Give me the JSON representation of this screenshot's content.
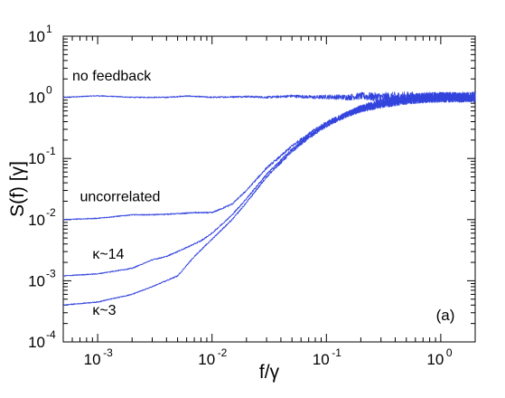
{
  "chart_data": {
    "type": "line",
    "title": "",
    "xlabel": "f/γ",
    "ylabel": "S(f) [γ]",
    "xscale": "log",
    "yscale": "log",
    "xlim": [
      0.0005,
      2
    ],
    "ylim": [
      0.0001,
      10
    ],
    "grid": false,
    "legend": "none",
    "line_color": "#3344dd",
    "x_ticks": [
      {
        "mant": "10",
        "exp": "-3",
        "value": 0.001
      },
      {
        "mant": "10",
        "exp": "-2",
        "value": 0.01
      },
      {
        "mant": "10",
        "exp": "-1",
        "value": 0.1
      },
      {
        "mant": "10",
        "exp": "0",
        "value": 1
      }
    ],
    "y_ticks": [
      {
        "mant": "10",
        "exp": "-4",
        "value": 0.0001
      },
      {
        "mant": "10",
        "exp": "-3",
        "value": 0.001
      },
      {
        "mant": "10",
        "exp": "-2",
        "value": 0.01
      },
      {
        "mant": "10",
        "exp": "-1",
        "value": 0.1
      },
      {
        "mant": "10",
        "exp": "0",
        "value": 1
      },
      {
        "mant": "10",
        "exp": "1",
        "value": 10
      }
    ],
    "annotations": [
      {
        "text": "no feedback",
        "x": 0.0006,
        "y": 1.9
      },
      {
        "text": "uncorrelated",
        "x": 0.0007,
        "y": 0.02
      },
      {
        "text": "κ~14",
        "x": 0.0009,
        "y": 0.0023
      },
      {
        "text": "κ~3",
        "x": 0.0009,
        "y": 0.00028
      }
    ],
    "panel_label": "(a)",
    "series": [
      {
        "x": [
          0.0005,
          0.001,
          0.002,
          0.004,
          0.006,
          0.01,
          0.02,
          0.03,
          0.05,
          0.08,
          0.1,
          0.15,
          0.2,
          0.3,
          0.5,
          0.7,
          1.0,
          1.5,
          2.0
        ],
        "y": [
          1.0,
          1.06,
          1.0,
          1.0,
          1.05,
          1.0,
          1.03,
          1.0,
          1.05,
          1.0,
          1.02,
          1.0,
          1.05,
          1.0,
          1.03,
          1.0,
          1.02,
          1.0,
          1.03
        ]
      },
      {
        "x": [
          0.0005,
          0.001,
          0.002,
          0.003,
          0.005,
          0.007,
          0.01,
          0.012,
          0.015,
          0.02,
          0.03,
          0.04,
          0.05,
          0.07,
          0.1,
          0.15,
          0.2,
          0.3,
          0.5,
          0.7,
          1.0,
          1.5,
          2.0
        ],
        "y": [
          0.01,
          0.0105,
          0.012,
          0.012,
          0.0125,
          0.013,
          0.013,
          0.015,
          0.018,
          0.03,
          0.07,
          0.11,
          0.16,
          0.25,
          0.38,
          0.53,
          0.65,
          0.8,
          0.92,
          0.97,
          1.0,
          1.0,
          1.0
        ]
      },
      {
        "x": [
          0.0005,
          0.001,
          0.002,
          0.003,
          0.004,
          0.006,
          0.008,
          0.01,
          0.015,
          0.02,
          0.03,
          0.05,
          0.07,
          0.1,
          0.15,
          0.2,
          0.3,
          0.5,
          0.7,
          1.0,
          1.5,
          2.0
        ],
        "y": [
          0.0012,
          0.0013,
          0.0016,
          0.0022,
          0.0025,
          0.0035,
          0.0045,
          0.006,
          0.012,
          0.022,
          0.055,
          0.14,
          0.23,
          0.36,
          0.52,
          0.65,
          0.8,
          0.92,
          0.97,
          1.0,
          1.0,
          1.0
        ]
      },
      {
        "x": [
          0.0005,
          0.001,
          0.002,
          0.003,
          0.005,
          0.007,
          0.01,
          0.015,
          0.02,
          0.03,
          0.05,
          0.07,
          0.1,
          0.15,
          0.2,
          0.3,
          0.5,
          0.7,
          1.0,
          1.5,
          2.0
        ],
        "y": [
          0.0004,
          0.00045,
          0.0006,
          0.0008,
          0.0012,
          0.0025,
          0.0048,
          0.01,
          0.019,
          0.05,
          0.13,
          0.22,
          0.35,
          0.52,
          0.65,
          0.8,
          0.92,
          0.97,
          1.0,
          1.0,
          1.0
        ]
      }
    ]
  }
}
